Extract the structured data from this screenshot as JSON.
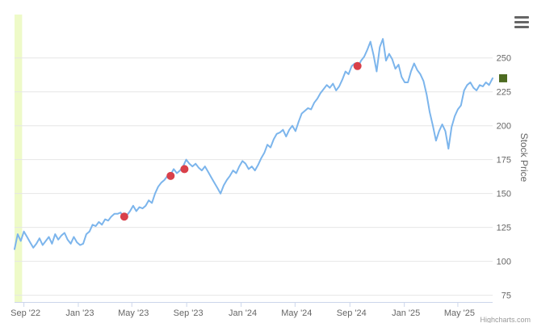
{
  "chart_data": {
    "type": "line",
    "title": "",
    "ylabel": "Stock Price",
    "xlabel": "",
    "ylim": [
      70,
      282
    ],
    "y_ticks": [
      75,
      100,
      125,
      150,
      175,
      200,
      225,
      250
    ],
    "y_axis_side": "right",
    "x_range": [
      "2022-08-11",
      "2025-07-18"
    ],
    "x_ticks": [
      {
        "date": "2022-09-01",
        "label": "Sep '22"
      },
      {
        "date": "2023-01-01",
        "label": "Jan '23"
      },
      {
        "date": "2023-05-01",
        "label": "May '23"
      },
      {
        "date": "2023-09-01",
        "label": "Sep '23"
      },
      {
        "date": "2024-01-01",
        "label": "Jan '24"
      },
      {
        "date": "2024-05-01",
        "label": "May '24"
      },
      {
        "date": "2024-09-01",
        "label": "Sep '24"
      },
      {
        "date": "2025-01-01",
        "label": "Jan '25"
      },
      {
        "date": "2025-05-01",
        "label": "May '25"
      }
    ],
    "grid": true,
    "highlight_band": {
      "from": "2022-08-11",
      "to": "2022-08-28",
      "color": "#eefac8"
    },
    "series": [
      {
        "color": "#7cb5ec",
        "points": [
          [
            "2022-08-11",
            109
          ],
          [
            "2022-08-18",
            120
          ],
          [
            "2022-08-25",
            115
          ],
          [
            "2022-09-01",
            122
          ],
          [
            "2022-09-08",
            118
          ],
          [
            "2022-09-15",
            114
          ],
          [
            "2022-09-22",
            110
          ],
          [
            "2022-09-29",
            113
          ],
          [
            "2022-10-06",
            117
          ],
          [
            "2022-10-13",
            112
          ],
          [
            "2022-10-20",
            115
          ],
          [
            "2022-10-27",
            118
          ],
          [
            "2022-11-03",
            113
          ],
          [
            "2022-11-10",
            120
          ],
          [
            "2022-11-17",
            116
          ],
          [
            "2022-11-24",
            119
          ],
          [
            "2022-12-01",
            121
          ],
          [
            "2022-12-08",
            116
          ],
          [
            "2022-12-15",
            113
          ],
          [
            "2022-12-22",
            118
          ],
          [
            "2022-12-29",
            114
          ],
          [
            "2023-01-05",
            112
          ],
          [
            "2023-01-12",
            113
          ],
          [
            "2023-01-19",
            120
          ],
          [
            "2023-01-26",
            122
          ],
          [
            "2023-02-02",
            127
          ],
          [
            "2023-02-09",
            126
          ],
          [
            "2023-02-16",
            129
          ],
          [
            "2023-02-23",
            127
          ],
          [
            "2023-03-02",
            131
          ],
          [
            "2023-03-09",
            130
          ],
          [
            "2023-03-16",
            133
          ],
          [
            "2023-03-23",
            135
          ],
          [
            "2023-03-30",
            135
          ],
          [
            "2023-04-06",
            136
          ],
          [
            "2023-04-13",
            132
          ],
          [
            "2023-04-20",
            134
          ],
          [
            "2023-04-27",
            137
          ],
          [
            "2023-05-04",
            141
          ],
          [
            "2023-05-11",
            137
          ],
          [
            "2023-05-18",
            140
          ],
          [
            "2023-05-25",
            139
          ],
          [
            "2023-06-01",
            141
          ],
          [
            "2023-06-08",
            145
          ],
          [
            "2023-06-15",
            143
          ],
          [
            "2023-06-22",
            150
          ],
          [
            "2023-06-29",
            155
          ],
          [
            "2023-07-06",
            158
          ],
          [
            "2023-07-13",
            160
          ],
          [
            "2023-07-20",
            163
          ],
          [
            "2023-07-27",
            164
          ],
          [
            "2023-08-03",
            168
          ],
          [
            "2023-08-10",
            165
          ],
          [
            "2023-08-17",
            167
          ],
          [
            "2023-08-24",
            170
          ],
          [
            "2023-08-31",
            175
          ],
          [
            "2023-09-07",
            172
          ],
          [
            "2023-09-14",
            170
          ],
          [
            "2023-09-21",
            172
          ],
          [
            "2023-09-28",
            169
          ],
          [
            "2023-10-05",
            167
          ],
          [
            "2023-10-12",
            170
          ],
          [
            "2023-10-19",
            166
          ],
          [
            "2023-10-26",
            162
          ],
          [
            "2023-11-02",
            158
          ],
          [
            "2023-11-09",
            154
          ],
          [
            "2023-11-16",
            150
          ],
          [
            "2023-11-23",
            156
          ],
          [
            "2023-11-30",
            160
          ],
          [
            "2023-12-07",
            163
          ],
          [
            "2023-12-14",
            167
          ],
          [
            "2023-12-21",
            165
          ],
          [
            "2023-12-28",
            170
          ],
          [
            "2024-01-04",
            174
          ],
          [
            "2024-01-11",
            172
          ],
          [
            "2024-01-18",
            168
          ],
          [
            "2024-01-25",
            170
          ],
          [
            "2024-02-01",
            167
          ],
          [
            "2024-02-08",
            171
          ],
          [
            "2024-02-15",
            176
          ],
          [
            "2024-02-22",
            180
          ],
          [
            "2024-02-29",
            186
          ],
          [
            "2024-03-07",
            184
          ],
          [
            "2024-03-14",
            190
          ],
          [
            "2024-03-21",
            194
          ],
          [
            "2024-03-28",
            195
          ],
          [
            "2024-04-04",
            197
          ],
          [
            "2024-04-11",
            192
          ],
          [
            "2024-04-18",
            197
          ],
          [
            "2024-04-25",
            200
          ],
          [
            "2024-05-02",
            196
          ],
          [
            "2024-05-09",
            203
          ],
          [
            "2024-05-16",
            209
          ],
          [
            "2024-05-23",
            211
          ],
          [
            "2024-05-30",
            213
          ],
          [
            "2024-06-06",
            212
          ],
          [
            "2024-06-13",
            217
          ],
          [
            "2024-06-20",
            220
          ],
          [
            "2024-06-27",
            224
          ],
          [
            "2024-07-04",
            227
          ],
          [
            "2024-07-11",
            230
          ],
          [
            "2024-07-18",
            228
          ],
          [
            "2024-07-25",
            231
          ],
          [
            "2024-08-01",
            226
          ],
          [
            "2024-08-08",
            229
          ],
          [
            "2024-08-15",
            234
          ],
          [
            "2024-08-22",
            240
          ],
          [
            "2024-08-29",
            238
          ],
          [
            "2024-09-05",
            244
          ],
          [
            "2024-09-12",
            246
          ],
          [
            "2024-09-19",
            243
          ],
          [
            "2024-09-26",
            248
          ],
          [
            "2024-10-03",
            251
          ],
          [
            "2024-10-10",
            256
          ],
          [
            "2024-10-17",
            262
          ],
          [
            "2024-10-24",
            252
          ],
          [
            "2024-10-31",
            240
          ],
          [
            "2024-11-07",
            258
          ],
          [
            "2024-11-14",
            264
          ],
          [
            "2024-11-21",
            248
          ],
          [
            "2024-11-28",
            253
          ],
          [
            "2024-12-05",
            249
          ],
          [
            "2024-12-12",
            242
          ],
          [
            "2024-12-19",
            245
          ],
          [
            "2024-12-26",
            236
          ],
          [
            "2025-01-02",
            232
          ],
          [
            "2025-01-09",
            232
          ],
          [
            "2025-01-16",
            240
          ],
          [
            "2025-01-23",
            246
          ],
          [
            "2025-01-30",
            241
          ],
          [
            "2025-02-06",
            238
          ],
          [
            "2025-02-13",
            233
          ],
          [
            "2025-02-20",
            223
          ],
          [
            "2025-02-27",
            210
          ],
          [
            "2025-03-06",
            200
          ],
          [
            "2025-03-13",
            189
          ],
          [
            "2025-03-20",
            196
          ],
          [
            "2025-03-27",
            201
          ],
          [
            "2025-04-03",
            196
          ],
          [
            "2025-04-10",
            183
          ],
          [
            "2025-04-17",
            199
          ],
          [
            "2025-04-24",
            207
          ],
          [
            "2025-05-01",
            212
          ],
          [
            "2025-05-08",
            215
          ],
          [
            "2025-05-15",
            226
          ],
          [
            "2025-05-22",
            230
          ],
          [
            "2025-05-29",
            232
          ],
          [
            "2025-06-05",
            228
          ],
          [
            "2025-06-12",
            226
          ],
          [
            "2025-06-19",
            230
          ],
          [
            "2025-06-26",
            229
          ],
          [
            "2025-07-03",
            232
          ],
          [
            "2025-07-10",
            230
          ],
          [
            "2025-07-18",
            235
          ]
        ]
      }
    ],
    "markers": [
      {
        "date": "2023-04-14",
        "value": 133,
        "shape": "circle",
        "color": "#d9404a"
      },
      {
        "date": "2023-07-27",
        "value": 163,
        "shape": "circle",
        "color": "#d9404a"
      },
      {
        "date": "2023-08-27",
        "value": 168,
        "shape": "circle",
        "color": "#d9404a"
      },
      {
        "date": "2024-09-18",
        "value": 244,
        "shape": "circle",
        "color": "#d9404a"
      }
    ],
    "last_value_marker": {
      "date": "2025-07-18",
      "value": 235,
      "shape": "square",
      "color": "#4d6b21"
    }
  },
  "credit": "Highcharts.com",
  "menu": {
    "icon": "hamburger-menu-icon"
  }
}
